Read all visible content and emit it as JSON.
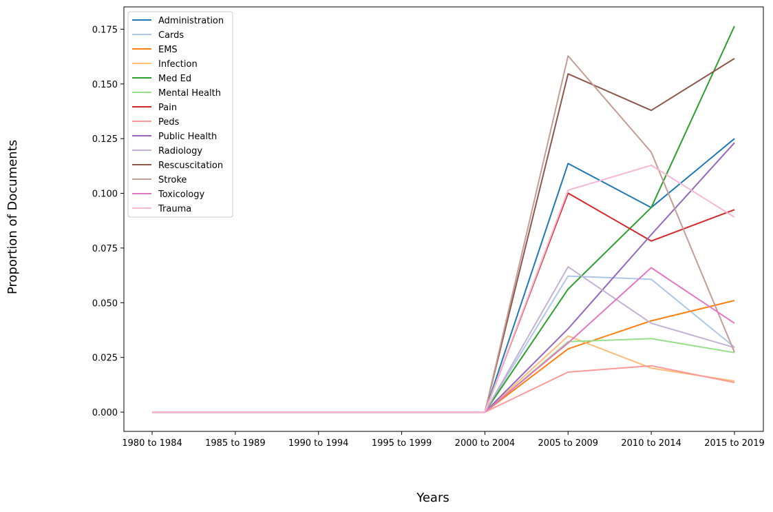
{
  "chart_data": {
    "type": "line",
    "xlabel": "Years",
    "ylabel": "Proportion of Documents",
    "categories": [
      "1980 to 1984",
      "1985 to 1989",
      "1990 to 1994",
      "1995 to 1999",
      "2000 to 2004",
      "2005 to 2009",
      "2010 to 2014",
      "2015 to 2019"
    ],
    "ylim": [
      -0.0088,
      0.1852
    ],
    "yticks": [
      0.0,
      0.025,
      0.05,
      0.075,
      0.1,
      0.125,
      0.15,
      0.175
    ],
    "ytick_labels": [
      "0.000",
      "0.025",
      "0.050",
      "0.075",
      "0.100",
      "0.125",
      "0.150",
      "0.175"
    ],
    "grid": false,
    "legend_position": "top-left",
    "series": [
      {
        "name": "Administration",
        "color": "#1f77b4",
        "values": [
          0,
          0,
          0,
          0,
          0,
          0.1136,
          0.0935,
          0.125
        ]
      },
      {
        "name": "Cards",
        "color": "#aec7e8",
        "values": [
          0,
          0,
          0,
          0,
          0,
          0.0622,
          0.0607,
          0.0297
        ]
      },
      {
        "name": "EMS",
        "color": "#ff7f0e",
        "values": [
          0,
          0,
          0,
          0,
          0,
          0.0289,
          0.0417,
          0.051
        ]
      },
      {
        "name": "Infection",
        "color": "#ffbb78",
        "values": [
          0,
          0,
          0,
          0,
          0,
          0.0348,
          0.0201,
          0.0142
        ]
      },
      {
        "name": "Med Ed",
        "color": "#2ca02c",
        "values": [
          0,
          0,
          0,
          0,
          0,
          0.0562,
          0.0935,
          0.1764
        ]
      },
      {
        "name": "Mental Health",
        "color": "#98df8a",
        "values": [
          0,
          0,
          0,
          0,
          0,
          0.0322,
          0.0336,
          0.0272
        ]
      },
      {
        "name": "Pain",
        "color": "#d62728",
        "values": [
          0,
          0,
          0,
          0,
          0,
          0.1001,
          0.0782,
          0.0925
        ]
      },
      {
        "name": "Peds",
        "color": "#ff9896",
        "values": [
          0,
          0,
          0,
          0,
          0,
          0.0183,
          0.0212,
          0.0135
        ]
      },
      {
        "name": "Public Health",
        "color": "#9467bd",
        "values": [
          0,
          0,
          0,
          0,
          0,
          0.0381,
          0.0811,
          0.1231
        ]
      },
      {
        "name": "Radiology",
        "color": "#c5b0d5",
        "values": [
          0,
          0,
          0,
          0,
          0,
          0.0664,
          0.0406,
          0.0295
        ]
      },
      {
        "name": "Rescuscitation",
        "color": "#8c564b",
        "values": [
          0,
          0,
          0,
          0,
          0,
          0.1546,
          0.1379,
          0.1616
        ]
      },
      {
        "name": "Stroke",
        "color": "#c49c94",
        "values": [
          0,
          0,
          0,
          0,
          0,
          0.1628,
          0.1188,
          0.0274
        ]
      },
      {
        "name": "Toxicology",
        "color": "#e377c2",
        "values": [
          0,
          0,
          0,
          0,
          0,
          0.0316,
          0.066,
          0.0406
        ]
      },
      {
        "name": "Trauma",
        "color": "#f7b6d2",
        "values": [
          0,
          0,
          0,
          0,
          0,
          0.1014,
          0.1128,
          0.0891
        ]
      }
    ]
  }
}
